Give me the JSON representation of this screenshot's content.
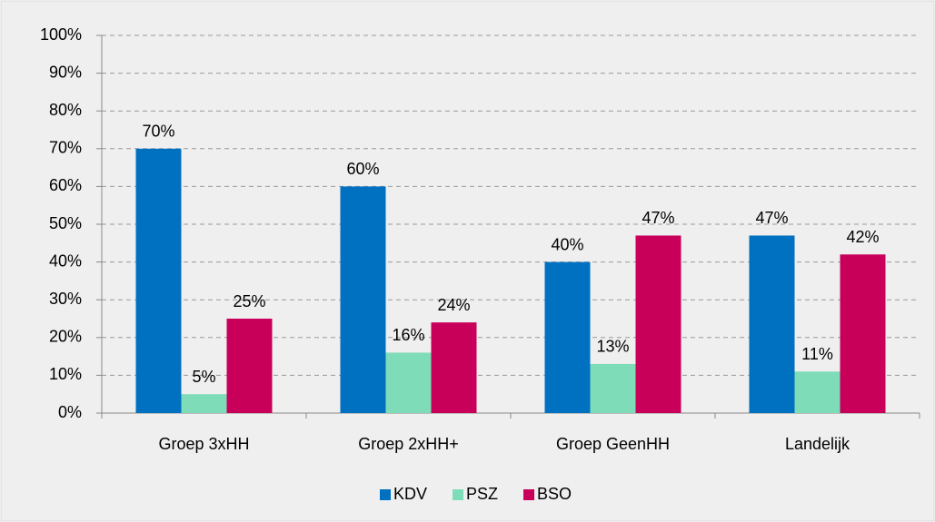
{
  "chart_data": {
    "type": "bar",
    "categories": [
      "Groep 3xHH",
      "Groep 2xHH+",
      "Groep GeenHH",
      "Landelijk"
    ],
    "series": [
      {
        "name": "KDV",
        "color": "#0070c0",
        "values": [
          70,
          60,
          40,
          47
        ],
        "value_labels": [
          "70%",
          "60%",
          "40%",
          "47%"
        ]
      },
      {
        "name": "PSZ",
        "color": "#7fdcb9",
        "values": [
          5,
          16,
          13,
          11
        ],
        "value_labels": [
          "5%",
          "16%",
          "13%",
          "11%"
        ]
      },
      {
        "name": "BSO",
        "color": "#c8005a",
        "values": [
          25,
          24,
          47,
          42
        ],
        "value_labels": [
          "25%",
          "24%",
          "47%",
          "42%"
        ]
      }
    ],
    "ylim": [
      0,
      100
    ],
    "yticks": [
      {
        "value": 0,
        "label": "0%"
      },
      {
        "value": 10,
        "label": "10%"
      },
      {
        "value": 20,
        "label": "20%"
      },
      {
        "value": 30,
        "label": "30%"
      },
      {
        "value": 40,
        "label": "40%"
      },
      {
        "value": 50,
        "label": "50%"
      },
      {
        "value": 60,
        "label": "60%"
      },
      {
        "value": 70,
        "label": "70%"
      },
      {
        "value": 80,
        "label": "80%"
      },
      {
        "value": 90,
        "label": "90%"
      },
      {
        "value": 100,
        "label": "100%"
      }
    ],
    "grid": true,
    "legend": "bottom"
  }
}
